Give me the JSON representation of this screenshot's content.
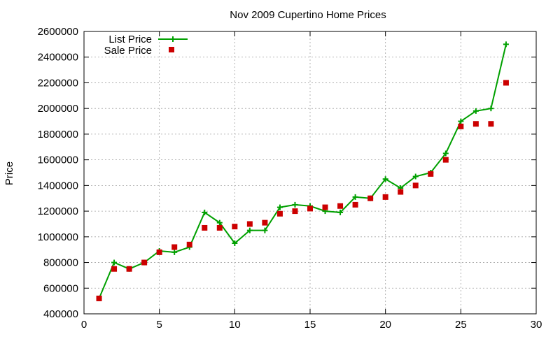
{
  "chart_data": {
    "type": "line",
    "title": "Nov 2009 Cupertino Home Prices",
    "xlabel": "",
    "ylabel": "Price",
    "xlim": [
      0,
      30
    ],
    "ylim": [
      400000,
      2600000
    ],
    "xticks": [
      0,
      5,
      10,
      15,
      20,
      25,
      30
    ],
    "yticks": [
      400000,
      600000,
      800000,
      1000000,
      1200000,
      1400000,
      1600000,
      1800000,
      2000000,
      2200000,
      2400000,
      2600000
    ],
    "grid": true,
    "legend_position": "top-left",
    "x": [
      1,
      2,
      3,
      4,
      5,
      6,
      7,
      8,
      9,
      10,
      11,
      12,
      13,
      14,
      15,
      16,
      17,
      18,
      19,
      20,
      21,
      22,
      23,
      24,
      25,
      26,
      27,
      28
    ],
    "series": [
      {
        "name": "List Price",
        "style": "line-with-plus-markers",
        "color": "#00a000",
        "values": [
          520000,
          800000,
          750000,
          800000,
          890000,
          880000,
          920000,
          1190000,
          1110000,
          950000,
          1050000,
          1050000,
          1230000,
          1250000,
          1240000,
          1200000,
          1190000,
          1310000,
          1300000,
          1450000,
          1380000,
          1470000,
          1500000,
          1650000,
          1900000,
          1980000,
          2000000,
          2500000
        ]
      },
      {
        "name": "Sale Price",
        "style": "square-markers",
        "color": "#cc0000",
        "values": [
          520000,
          750000,
          750000,
          800000,
          880000,
          920000,
          940000,
          1070000,
          1070000,
          1080000,
          1100000,
          1110000,
          1180000,
          1200000,
          1220000,
          1230000,
          1240000,
          1250000,
          1300000,
          1310000,
          1350000,
          1400000,
          1490000,
          1600000,
          1860000,
          1880000,
          1880000,
          2200000
        ]
      }
    ]
  }
}
